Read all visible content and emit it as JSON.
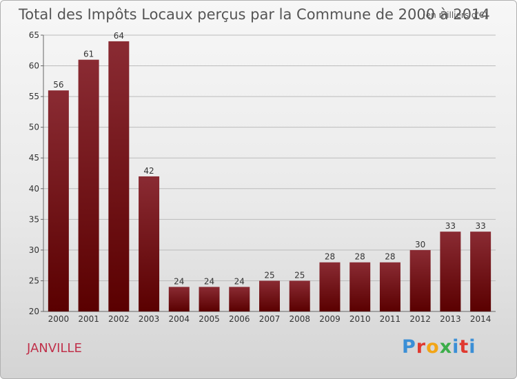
{
  "header": {
    "title": "Total des Impôts Locaux perçus par la Commune de 2000 à 2014",
    "unit": "(en milliers d'€)"
  },
  "footer": {
    "commune": "JANVILLE",
    "logo": {
      "text": "Proxiti",
      "letters": [
        "P",
        "r",
        "o",
        "x",
        "i",
        "t",
        "i"
      ]
    }
  },
  "colors": {
    "bar_top": "#8a2b33",
    "bar_bottom": "#5a0000",
    "grid": "#bbbbbb",
    "commune_text": "#c0304a"
  },
  "chart_data": {
    "type": "bar",
    "title": "Total des Impôts Locaux perçus par la Commune de 2000 à 2014",
    "subtitle": "(en milliers d'€)",
    "xlabel": "",
    "ylabel": "",
    "categories": [
      "2000",
      "2001",
      "2002",
      "2003",
      "2004",
      "2005",
      "2006",
      "2007",
      "2008",
      "2009",
      "2010",
      "2011",
      "2012",
      "2013",
      "2014"
    ],
    "values": [
      56,
      61,
      64,
      42,
      24,
      24,
      24,
      25,
      25,
      28,
      28,
      28,
      30,
      33,
      33
    ],
    "ylim": [
      20,
      65
    ],
    "yticks": [
      20,
      25,
      30,
      35,
      40,
      45,
      50,
      55,
      60,
      65
    ],
    "grid": true,
    "legend": "none"
  }
}
